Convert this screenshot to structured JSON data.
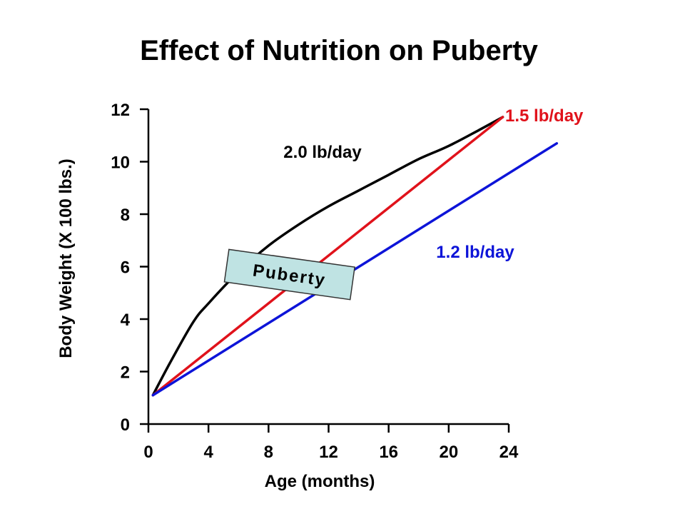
{
  "chart_data": {
    "type": "line",
    "title": "Effect of Nutrition on Puberty",
    "xlabel": "Age (months)",
    "ylabel": "Body Weight (X 100 lbs.)",
    "xlim": [
      0,
      24
    ],
    "ylim": [
      0,
      12
    ],
    "xticks": [
      0,
      4,
      8,
      12,
      16,
      20,
      24
    ],
    "yticks": [
      0,
      2,
      4,
      6,
      8,
      10,
      12
    ],
    "grid": false,
    "series": [
      {
        "name": "2.0 lb/day",
        "color": "#000000",
        "shape": "curve",
        "x": [
          0.3,
          1.5,
          3,
          4,
          6,
          8,
          10,
          12,
          14,
          16,
          18,
          20,
          22,
          23.6
        ],
        "y": [
          1.1,
          2.4,
          3.9,
          4.6,
          5.8,
          6.8,
          7.6,
          8.3,
          8.9,
          9.5,
          10.1,
          10.6,
          11.2,
          11.7
        ]
      },
      {
        "name": "1.5 lb/day",
        "color": "#e0121b",
        "shape": "line",
        "x": [
          0.3,
          23.6
        ],
        "y": [
          1.1,
          11.7
        ]
      },
      {
        "name": "1.2 lb/day",
        "color": "#0d14d8",
        "shape": "line",
        "x": [
          0.3,
          27.2
        ],
        "y": [
          1.1,
          10.7
        ]
      }
    ],
    "annotation": {
      "text": "Puberty",
      "fill": "#bfe3e3",
      "x": 9.4,
      "y": 5.7,
      "rotation_deg": 8
    }
  }
}
